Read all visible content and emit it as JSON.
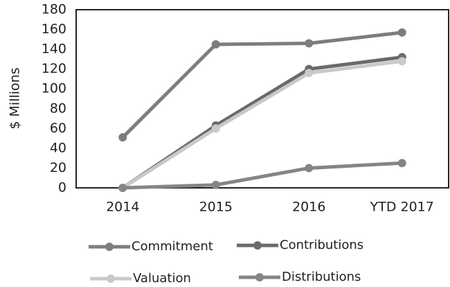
{
  "chart_data": {
    "type": "line",
    "y_label": "$ Millions",
    "categories": [
      "2014",
      "2015",
      "2016",
      "YTD 2017"
    ],
    "series": [
      {
        "name": "Commitment",
        "color": "#7d7d7d",
        "values": [
          51,
          145,
          146,
          157
        ]
      },
      {
        "name": "Contributions",
        "color": "#6a6a6a",
        "values": [
          0,
          63,
          120,
          132
        ]
      },
      {
        "name": "Valuation",
        "color": "#c9c9c9",
        "values": [
          0,
          60,
          116,
          128
        ]
      },
      {
        "name": "Distributions",
        "color": "#858585",
        "values": [
          0,
          3,
          20,
          25
        ]
      }
    ],
    "ylim": [
      0,
      180
    ],
    "yticks": [
      0,
      20,
      40,
      60,
      80,
      100,
      120,
      140,
      160,
      180
    ],
    "grid": false
  }
}
